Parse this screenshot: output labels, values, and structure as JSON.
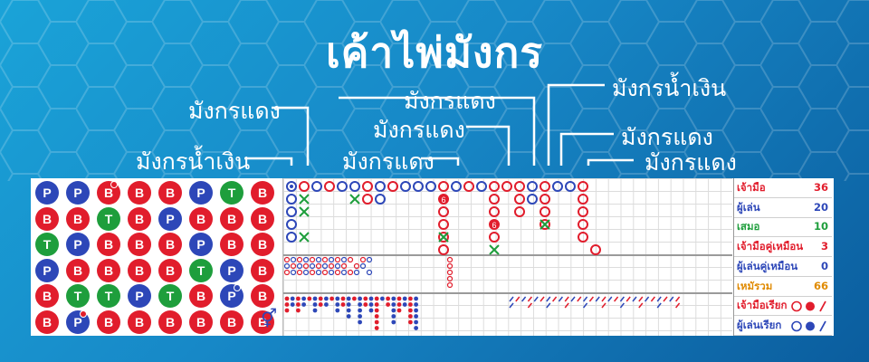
{
  "title": "เค้าไพ่มังกร",
  "callouts": [
    {
      "id": "c1",
      "text": "มังกรแดง"
    },
    {
      "id": "c2",
      "text": "มังกรน้ำเงิน"
    },
    {
      "id": "c3",
      "text": "มังกรแดง"
    },
    {
      "id": "c4",
      "text": "มังกรแดง"
    },
    {
      "id": "c5",
      "text": "มังกรแดง"
    },
    {
      "id": "c6",
      "text": "มังกรน้ำเงิน"
    },
    {
      "id": "c7",
      "text": "มังกรแดง"
    },
    {
      "id": "c8",
      "text": "มังกรแดง"
    }
  ],
  "bead_grid": [
    [
      "P",
      "P",
      "B",
      "B",
      "B",
      "P",
      "T",
      "B"
    ],
    [
      "B",
      "B",
      "T",
      "B",
      "P",
      "B",
      "B",
      "B"
    ],
    [
      "T",
      "P",
      "B",
      "B",
      "B",
      "P",
      "B",
      "B"
    ],
    [
      "P",
      "B",
      "B",
      "B",
      "B",
      "T",
      "P",
      "B"
    ],
    [
      "B",
      "T",
      "T",
      "P",
      "T",
      "B",
      "P",
      "B"
    ],
    [
      "B",
      "P",
      "B",
      "B",
      "B",
      "B",
      "B",
      "B"
    ]
  ],
  "stats": [
    {
      "label": "เจ้ามือ",
      "value": "36",
      "color": "#e11d2c"
    },
    {
      "label": "ผู้เล่น",
      "value": "20",
      "color": "#2d47b8"
    },
    {
      "label": "เสมอ",
      "value": "10",
      "color": "#1e9e3c"
    },
    {
      "label": "เจ้ามือคู่เหมือน",
      "value": "3",
      "color": "#e11d2c"
    },
    {
      "label": "ผู้เล่นคู่เหมือน",
      "value": "0",
      "color": "#2d47b8"
    },
    {
      "label": "เหมัรวม",
      "value": "66",
      "color": "#e08a00"
    },
    {
      "label": "เจ้ามือเรียก",
      "value": "",
      "color": "#e11d2c"
    },
    {
      "label": "ผู้เล่นเรียก",
      "value": "",
      "color": "#2d47b8"
    }
  ],
  "colors": {
    "banker": "#e11d2c",
    "player": "#2d47b8",
    "tie": "#1e9e3c"
  },
  "icons": {
    "switch": "gender-switch-icon"
  }
}
